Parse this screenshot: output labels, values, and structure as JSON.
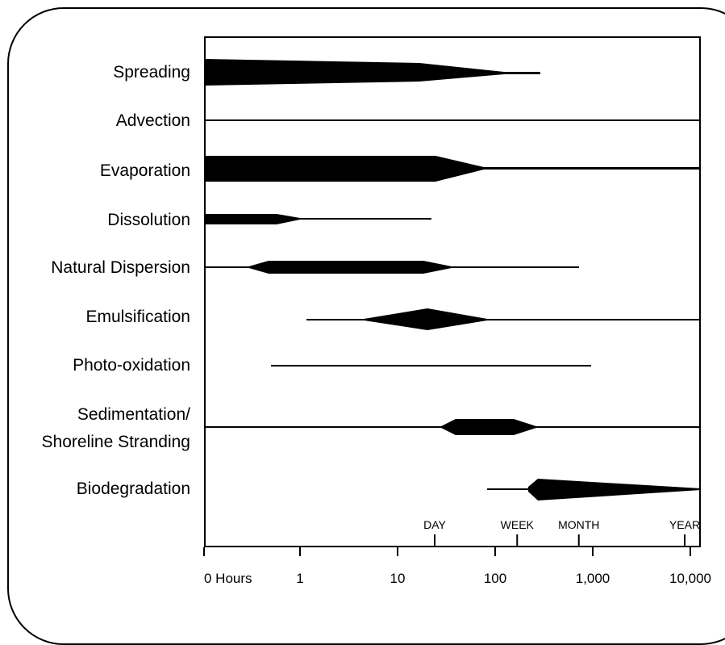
{
  "diagram": {
    "processes": [
      {
        "label": "Spreading"
      },
      {
        "label": "Advection"
      },
      {
        "label": "Evaporation"
      },
      {
        "label": "Dissolution"
      },
      {
        "label": "Natural Dispersion"
      },
      {
        "label": "Emulsification"
      },
      {
        "label": "Photo-oxidation"
      },
      {
        "label": "Sedimentation/",
        "label2": "Shoreline Stranding"
      },
      {
        "label": "Biodegradation"
      }
    ],
    "x_axis": {
      "ticks": [
        {
          "label": "0 Hours",
          "hours": 0
        },
        {
          "label": "1",
          "hours": 1
        },
        {
          "label": "10",
          "hours": 10
        },
        {
          "label": "100",
          "hours": 100
        },
        {
          "label": "1,000",
          "hours": 1000
        },
        {
          "label": "10,000",
          "hours": 10000
        }
      ],
      "markers": [
        {
          "label": "DAY",
          "hours": 24
        },
        {
          "label": "WEEK",
          "hours": 168
        },
        {
          "label": "MONTH",
          "hours": 720
        },
        {
          "label": "YEAR",
          "hours": 8760
        }
      ]
    }
  }
}
